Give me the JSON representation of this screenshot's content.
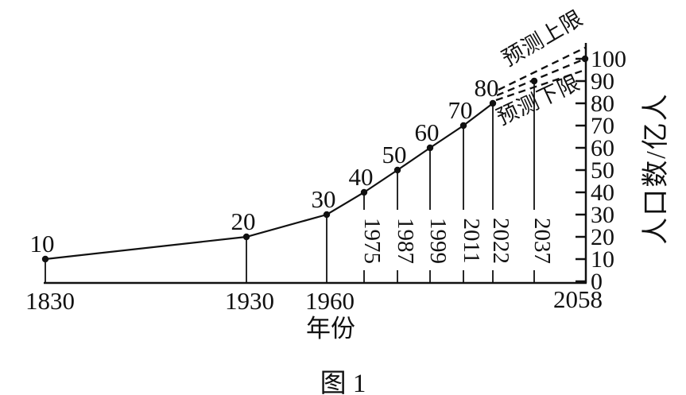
{
  "figure": {
    "caption": "图 1"
  },
  "chart_data": {
    "type": "line",
    "title": "图 1",
    "xlabel": "年份",
    "ylabel": "人口数/亿人",
    "x_range": [
      1830,
      2058
    ],
    "ylim": [
      0,
      105
    ],
    "y_ticks": [
      0,
      10,
      20,
      30,
      40,
      50,
      60,
      70,
      80,
      90,
      100
    ],
    "x_labels_below_axis": [
      "1830",
      "1930",
      "1960",
      "2058"
    ],
    "x_labels_rotated_in_plot": [
      "1975",
      "1987",
      "1999",
      "2011",
      "2022",
      "2037"
    ],
    "series": [
      {
        "name": "historical-population",
        "style": "solid",
        "point_labels_visible": true,
        "points": [
          {
            "year": 1830,
            "value": 10
          },
          {
            "year": 1930,
            "value": 20
          },
          {
            "year": 1960,
            "value": 30
          },
          {
            "year": 1975,
            "value": 40
          },
          {
            "year": 1987,
            "value": 50
          },
          {
            "year": 1999,
            "value": 60
          },
          {
            "year": 2011,
            "value": 70
          },
          {
            "year": 2022,
            "value": 80
          }
        ]
      },
      {
        "name": "projection-mid",
        "style": "dashed",
        "points": [
          {
            "year": 2022,
            "value": 80
          },
          {
            "year": 2037,
            "value": 90
          },
          {
            "year": 2058,
            "value": 100
          }
        ]
      },
      {
        "name": "projection-upper",
        "style": "dashed",
        "label": "预测上限",
        "points": [
          {
            "year": 2022,
            "value": 80
          },
          {
            "year": 2058,
            "value": 105
          }
        ]
      },
      {
        "name": "projection-lower",
        "style": "dashed",
        "label": "预测下限",
        "points": [
          {
            "year": 2022,
            "value": 80
          },
          {
            "year": 2058,
            "value": 95
          }
        ]
      }
    ],
    "annotations": [
      {
        "text": "预测上限",
        "position": "above-upper-dashed-line"
      },
      {
        "text": "预测下限",
        "position": "below-lower-dashed-line"
      }
    ]
  }
}
